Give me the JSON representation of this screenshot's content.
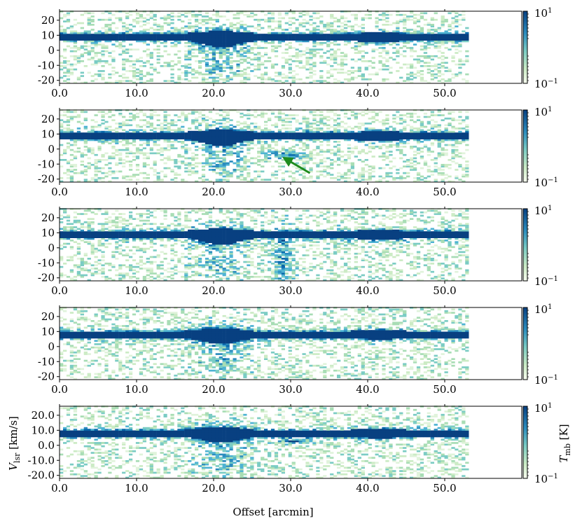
{
  "figure": {
    "xlabel": "Offset [arcmin]",
    "ylabel_main": "V",
    "ylabel_sub": "lsr",
    "ylabel_unit": " [km/s]",
    "cbar_label_main": "T",
    "cbar_label_sub": "mb",
    "cbar_label_unit": " [K]"
  },
  "chart_data": [
    {
      "type": "heatmap",
      "panel": 1,
      "x_tick_labels": [
        "0.0",
        "10.0",
        "20.0",
        "30.0",
        "40.0",
        "50.0"
      ],
      "x_ticks": [
        0,
        10,
        20,
        30,
        40,
        50
      ],
      "y_tick_labels": [
        "20",
        "10",
        "0",
        "-10",
        "-20"
      ],
      "y_ticks": [
        20,
        10,
        0,
        -10,
        -20
      ],
      "xlim": [
        0,
        60
      ],
      "ylim": [
        -22,
        26
      ],
      "data_extent_x": [
        0,
        53
      ],
      "colormap": "GnBu",
      "color_scale": "log",
      "colorbar_range": [
        0.1,
        10
      ],
      "colorbar_ticks": [
        "10^1",
        "10^-1"
      ],
      "features": "bright main band near 8-10 km/s across all offsets; broad strong emission 17-24 arcmin; second bright clump 38-46 arcmin; faint tail to -20 km/s near 21 arcmin"
    },
    {
      "type": "heatmap",
      "panel": 2,
      "x_tick_labels": [
        "0.0",
        "10.0",
        "20.0",
        "30.0",
        "40.0",
        "50.0"
      ],
      "x_ticks": [
        0,
        10,
        20,
        30,
        40,
        50
      ],
      "y_tick_labels": [
        "20",
        "10",
        "0",
        "-10",
        "-20"
      ],
      "y_ticks": [
        20,
        10,
        0,
        -10,
        -20
      ],
      "xlim": [
        0,
        60
      ],
      "ylim": [
        -22,
        26
      ],
      "data_extent_x": [
        0,
        53
      ],
      "colormap": "GnBu",
      "color_scale": "log",
      "colorbar_range": [
        0.1,
        10
      ],
      "colorbar_ticks": [
        "10^1",
        "10^-1"
      ],
      "annotation": {
        "type": "arrow",
        "color": "#1e8c1e",
        "from": [
          32.5,
          -16
        ],
        "to": [
          29.5,
          -7
        ]
      },
      "features": "main band near 8-10 km/s; blue-shifted structure at -5 to -10 km/s between 26 and 33 arcmin marked by arrow"
    },
    {
      "type": "heatmap",
      "panel": 3,
      "x_tick_labels": [
        "0.0",
        "10.0",
        "20.0",
        "30.0",
        "40.0",
        "50.0"
      ],
      "x_ticks": [
        0,
        10,
        20,
        30,
        40,
        50
      ],
      "y_tick_labels": [
        "20",
        "10",
        "0",
        "-10",
        "-20"
      ],
      "y_ticks": [
        20,
        10,
        0,
        -10,
        -20
      ],
      "xlim": [
        0,
        60
      ],
      "ylim": [
        -22,
        26
      ],
      "data_extent_x": [
        0,
        53
      ],
      "colormap": "GnBu",
      "color_scale": "log",
      "colorbar_range": [
        0.1,
        10
      ],
      "colorbar_ticks": [
        "10^1",
        "10^-1"
      ],
      "features": "main band near 8-10 km/s; filament reaching -20 km/s near 29 arcmin"
    },
    {
      "type": "heatmap",
      "panel": 4,
      "x_tick_labels": [
        "0.0",
        "10.0",
        "20.0",
        "30.0",
        "40.0",
        "50.0"
      ],
      "x_ticks": [
        0,
        10,
        20,
        30,
        40,
        50
      ],
      "y_tick_labels": [
        "20",
        "10",
        "0",
        "-10",
        "-20"
      ],
      "y_ticks": [
        20,
        10,
        0,
        -10,
        -20
      ],
      "xlim": [
        0,
        60
      ],
      "ylim": [
        -22,
        26
      ],
      "data_extent_x": [
        0,
        53
      ],
      "colormap": "GnBu",
      "color_scale": "log",
      "colorbar_range": [
        0.1,
        10
      ],
      "colorbar_ticks": [
        "10^1",
        "10^-1"
      ],
      "features": "main band near 8 km/s; bright emission 17-24 arcmin; clumps 36-45 arcmin"
    },
    {
      "type": "heatmap",
      "panel": 5,
      "x_tick_labels": [
        "0.0",
        "10.0",
        "20.0",
        "30.0",
        "40.0",
        "50.0"
      ],
      "x_ticks": [
        0,
        10,
        20,
        30,
        40,
        50
      ],
      "y_tick_labels": [
        "20.0",
        "10.0",
        "0.0",
        "-10.0",
        "-20.0"
      ],
      "y_ticks": [
        20,
        10,
        0,
        -10,
        -20
      ],
      "xlim": [
        0,
        60
      ],
      "ylim": [
        -22,
        26
      ],
      "data_extent_x": [
        0,
        53
      ],
      "colormap": "GnBu",
      "color_scale": "log",
      "colorbar_range": [
        0.1,
        10
      ],
      "colorbar_ticks": [
        "10^1",
        "10^-1"
      ],
      "features": "main band near 8 km/s; bright emission 17-25 arcmin; clumps at 3 km/s near 30 arcmin and 8 km/s near 38-45 arcmin"
    }
  ]
}
